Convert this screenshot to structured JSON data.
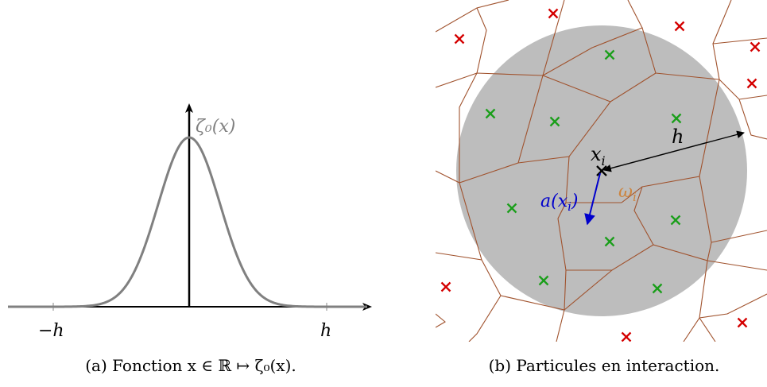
{
  "panel_a": {
    "curve_label": "ζ₀(x)",
    "tick_left": "−h",
    "tick_right": "h",
    "caption": "(a) Fonction x ∈ ℝ ↦ ζ₀(x).",
    "curve_color": "#808080"
  },
  "panel_b": {
    "label_radius": "h",
    "label_particle": "x",
    "label_particle_sub": "i",
    "label_vector": "a(x",
    "label_vector_sub": "i",
    "label_vector_close": ")",
    "label_cell": "ω",
    "label_cell_sub": "i",
    "caption": "(b) Particules en interaction.",
    "colors": {
      "disk": "#bdbdbd",
      "cell_edges": "#a0522d",
      "inside_particles": "#1a9e1a",
      "outside_particles": "#d40000",
      "vector": "#0000cc",
      "cell_label": "#cd853f"
    }
  }
}
